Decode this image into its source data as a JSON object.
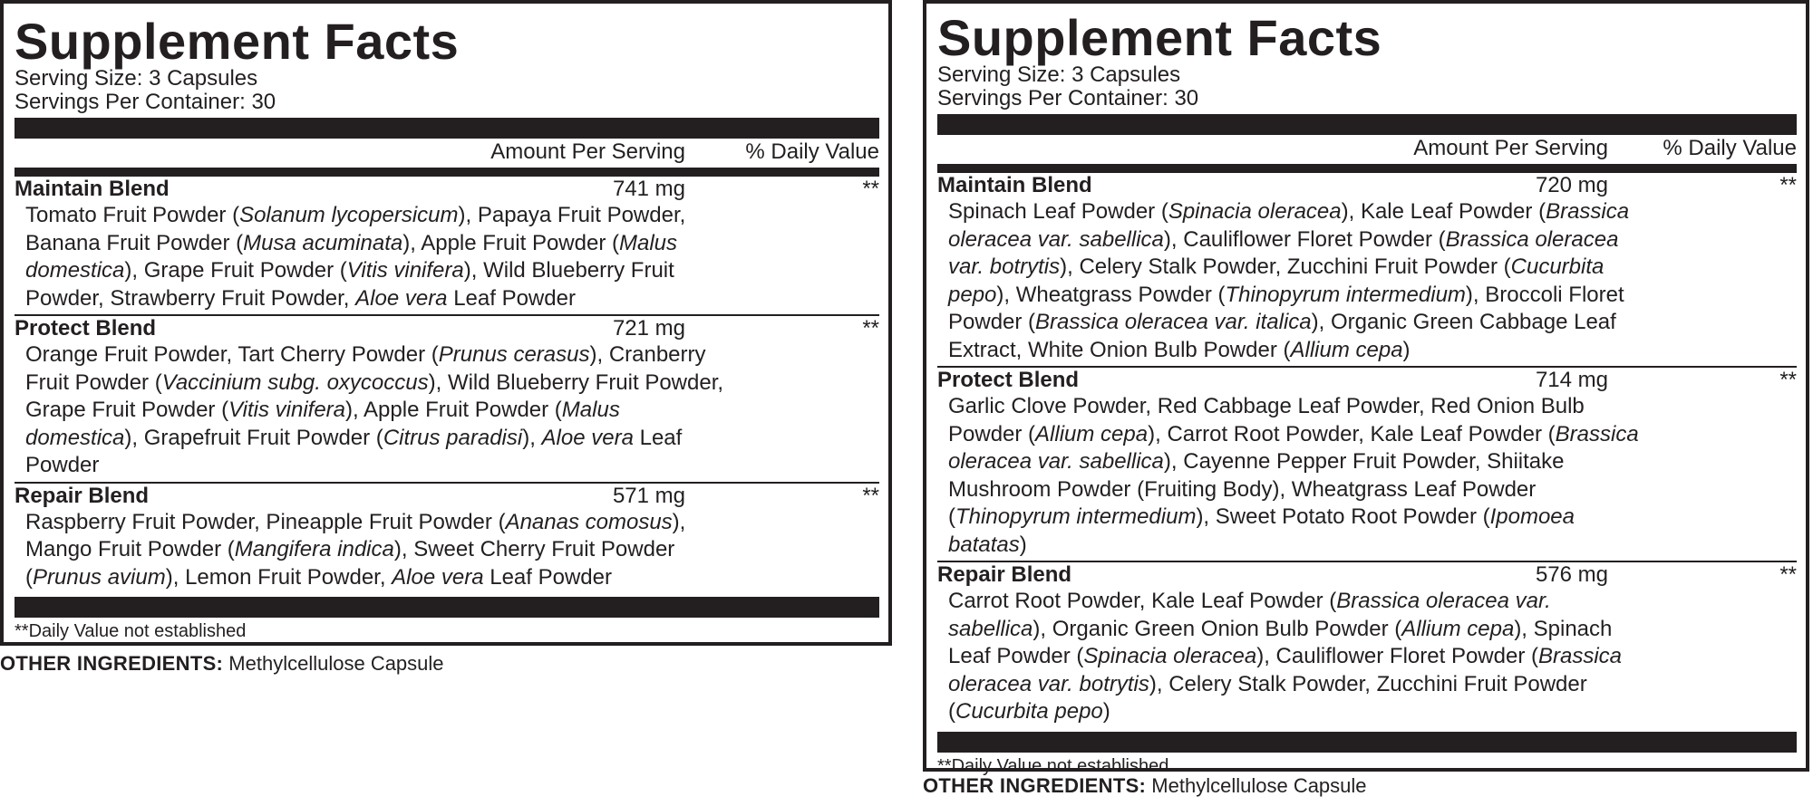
{
  "labels": [
    {
      "title": "Supplement Facts",
      "serving_size": "Serving Size: 3 Capsules",
      "servings_per_container": "Servings Per Container: 30",
      "amount_header": "Amount Per Serving",
      "dv_header": "% Daily Value",
      "blends": [
        {
          "name": "Maintain Blend",
          "amount": "741 mg",
          "dv": "**",
          "lines": [
            [
              [
                "Tomato Fruit Powder (",
                0
              ],
              [
                "Solanum lycopersicum",
                1
              ],
              [
                "), Papaya Fruit Powder,",
                0
              ]
            ],
            [
              [
                "Banana Fruit Powder (",
                0
              ],
              [
                "Musa acuminata",
                1
              ],
              [
                "), Apple Fruit Powder (",
                0
              ],
              [
                "Malus",
                1
              ]
            ],
            [
              [
                "domestica",
                1
              ],
              [
                "), Grape Fruit Powder (",
                0
              ],
              [
                "Vitis vinifera",
                1
              ],
              [
                "), Wild Blueberry Fruit",
                0
              ]
            ],
            [
              [
                "Powder, Strawberry Fruit Powder, ",
                0
              ],
              [
                "Aloe vera",
                1
              ],
              [
                " Leaf Powder",
                0
              ]
            ]
          ]
        },
        {
          "name": "Protect Blend",
          "amount": "721 mg",
          "dv": "**",
          "lines": [
            [
              [
                "Orange Fruit Powder, Tart Cherry Powder (",
                0
              ],
              [
                "Prunus cerasus",
                1
              ],
              [
                "), Cranberry",
                0
              ]
            ],
            [
              [
                "Fruit Powder (",
                0
              ],
              [
                "Vaccinium subg. oxycoccus",
                1
              ],
              [
                "), Wild Blueberry Fruit Powder,",
                0
              ]
            ],
            [
              [
                "Grape Fruit Powder (",
                0
              ],
              [
                "Vitis vinifera",
                1
              ],
              [
                "), Apple Fruit Powder (",
                0
              ],
              [
                "Malus",
                1
              ]
            ],
            [
              [
                "domestica",
                1
              ],
              [
                "), Grapefruit Fruit Powder (",
                0
              ],
              [
                "Citrus paradisi",
                1
              ],
              [
                "), ",
                0
              ],
              [
                "Aloe vera",
                1
              ],
              [
                " Leaf",
                0
              ]
            ],
            [
              [
                "Powder",
                0
              ]
            ]
          ]
        },
        {
          "name": "Repair Blend",
          "amount": "571 mg",
          "dv": "**",
          "lines": [
            [
              [
                "Raspberry Fruit Powder, Pineapple Fruit Powder (",
                0
              ],
              [
                "Ananas comosus",
                1
              ],
              [
                "),",
                0
              ]
            ],
            [
              [
                "Mango Fruit Powder (",
                0
              ],
              [
                "Mangifera indica",
                1
              ],
              [
                "), Sweet Cherry Fruit Powder",
                0
              ]
            ],
            [
              [
                "(",
                0
              ],
              [
                "Prunus avium",
                1
              ],
              [
                "), Lemon Fruit Powder, ",
                0
              ],
              [
                "Aloe vera",
                1
              ],
              [
                " Leaf Powder",
                0
              ]
            ]
          ]
        }
      ],
      "footnote": "**Daily Value not established",
      "other_label": "OTHER INGREDIENTS:",
      "other_value": " Methylcellulose Capsule"
    },
    {
      "title": "Supplement Facts",
      "serving_size": "Serving Size: 3 Capsules",
      "servings_per_container": "Servings Per Container: 30",
      "amount_header": "Amount Per Serving",
      "dv_header": "% Daily Value",
      "blends": [
        {
          "name": "Maintain Blend",
          "amount": "720 mg",
          "dv": "**",
          "lines": [
            [
              [
                "Spinach Leaf Powder (",
                0
              ],
              [
                "Spinacia oleracea",
                1
              ],
              [
                "), Kale Leaf Powder (",
                0
              ],
              [
                "Brassica",
                1
              ]
            ],
            [
              [
                "oleracea var. sabellica",
                1
              ],
              [
                "), Cauliflower Floret Powder (",
                0
              ],
              [
                "Brassica oleracea",
                1
              ]
            ],
            [
              [
                "var. botrytis",
                1
              ],
              [
                "), Celery Stalk Powder, Zucchini Fruit Powder (",
                0
              ],
              [
                "Cucurbita",
                1
              ]
            ],
            [
              [
                "pepo",
                1
              ],
              [
                "), Wheatgrass Powder (",
                0
              ],
              [
                "Thinopyrum intermedium",
                1
              ],
              [
                "), Broccoli Floret",
                0
              ]
            ],
            [
              [
                "Powder (",
                0
              ],
              [
                "Brassica oleracea var. italica",
                1
              ],
              [
                "), Organic Green Cabbage Leaf",
                0
              ]
            ],
            [
              [
                "Extract, White Onion Bulb Powder (",
                0
              ],
              [
                "Allium cepa",
                1
              ],
              [
                ")",
                0
              ]
            ]
          ]
        },
        {
          "name": "Protect Blend",
          "amount": "714 mg",
          "dv": "**",
          "lines": [
            [
              [
                "Garlic Clove Powder, Red Cabbage Leaf Powder, Red Onion Bulb",
                0
              ]
            ],
            [
              [
                "Powder (",
                0
              ],
              [
                "Allium cepa",
                1
              ],
              [
                "), Carrot Root Powder, Kale Leaf Powder (",
                0
              ],
              [
                "Brassica",
                1
              ]
            ],
            [
              [
                "oleracea var. sabellica",
                1
              ],
              [
                "), Cayenne Pepper Fruit Powder, Shiitake",
                0
              ]
            ],
            [
              [
                "Mushroom Powder (Fruiting Body), Wheatgrass Leaf Powder",
                0
              ]
            ],
            [
              [
                "(",
                0
              ],
              [
                "Thinopyrum intermedium",
                1
              ],
              [
                "), Sweet Potato Root Powder (",
                0
              ],
              [
                "Ipomoea",
                1
              ]
            ],
            [
              [
                "batatas",
                1
              ],
              [
                ")",
                0
              ]
            ]
          ]
        },
        {
          "name": "Repair Blend",
          "amount": "576 mg",
          "dv": "**",
          "lines": [
            [
              [
                "Carrot Root Powder, Kale Leaf Powder (",
                0
              ],
              [
                "Brassica oleracea var.",
                1
              ]
            ],
            [
              [
                "sabellica",
                1
              ],
              [
                "), Organic Green Onion Bulb Powder (",
                0
              ],
              [
                "Allium cepa",
                1
              ],
              [
                "), Spinach",
                0
              ]
            ],
            [
              [
                "Leaf Powder (",
                0
              ],
              [
                "Spinacia oleracea",
                1
              ],
              [
                "), Cauliflower Floret Powder (",
                0
              ],
              [
                "Brassica",
                1
              ]
            ],
            [
              [
                "oleracea var. botrytis",
                1
              ],
              [
                "), Celery Stalk Powder, Zucchini Fruit Powder",
                0
              ]
            ],
            [
              [
                "(",
                0
              ],
              [
                "Cucurbita pepo",
                1
              ],
              [
                ")",
                0
              ]
            ]
          ]
        }
      ],
      "footnote": "**Daily Value not established",
      "other_label": "OTHER INGREDIENTS:",
      "other_value": " Methylcellulose Capsule"
    }
  ]
}
